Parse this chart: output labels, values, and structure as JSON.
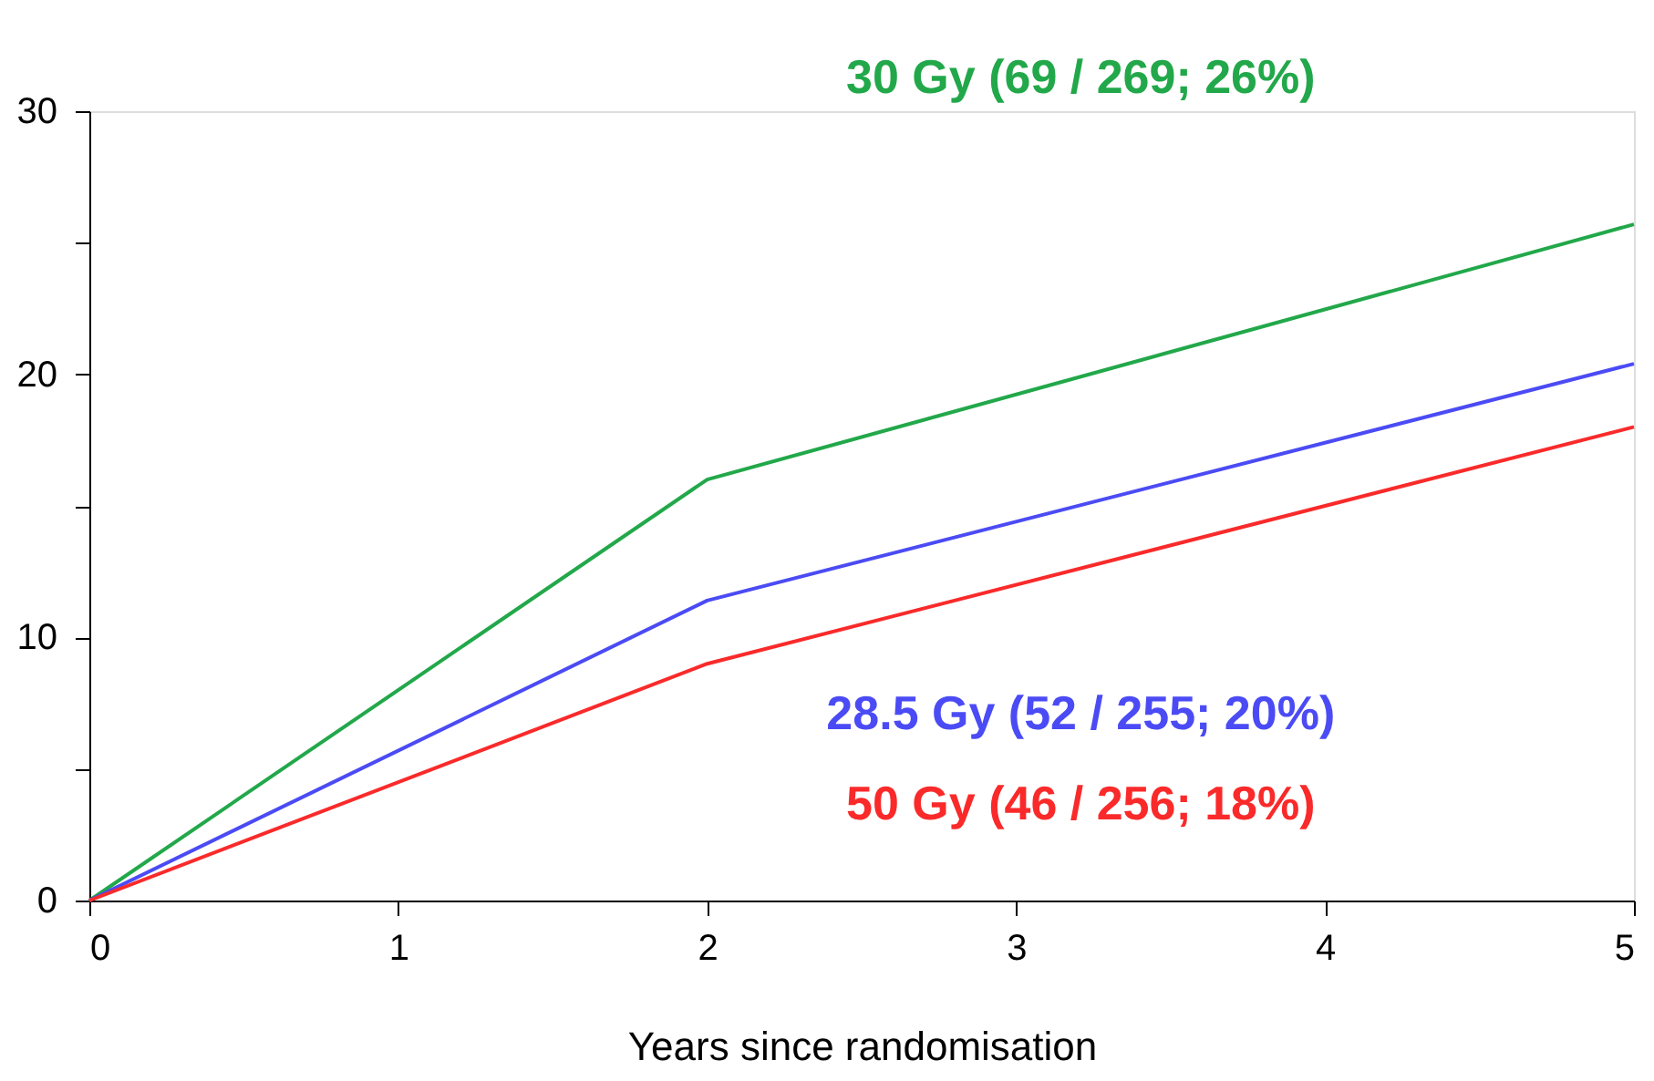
{
  "chart_data": {
    "type": "line",
    "xlabel": "Years since randomisation",
    "x": [
      0,
      2,
      5
    ],
    "series": [
      {
        "name": "30 Gy (69 / 269; 26%)",
        "color": "#22a84a",
        "values": [
          0,
          16,
          25.7
        ]
      },
      {
        "name": "28.5 Gy (52 / 255; 20%)",
        "color": "#4b4bf5",
        "values": [
          0,
          11.4,
          20.4
        ]
      },
      {
        "name": "50 Gy (46 / 256; 18%)",
        "color": "#fa2a2a",
        "values": [
          0,
          9,
          18
        ]
      }
    ],
    "xlim": [
      0,
      5
    ],
    "xticks": [
      0,
      1,
      2,
      3,
      4,
      5
    ],
    "ylim": [
      0,
      30
    ],
    "yticks": [
      0,
      {
        "value": 5,
        "label": null
      },
      10,
      {
        "value": 15,
        "label": null
      },
      20,
      {
        "value": 25,
        "label": null
      },
      30
    ],
    "grid": false,
    "legend": false,
    "marker": "none",
    "line_style": "solid"
  }
}
